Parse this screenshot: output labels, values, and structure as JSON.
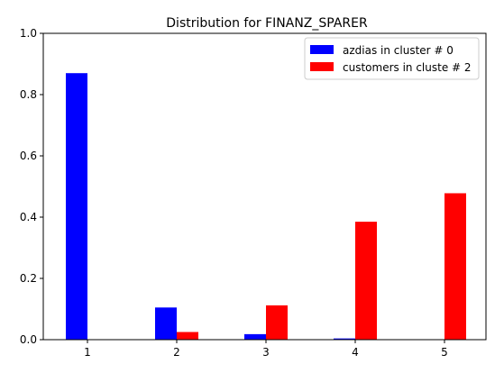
{
  "chart_data": {
    "type": "bar",
    "title": "Distribution for FINANZ_SPARER",
    "xlabel": "",
    "ylabel": "",
    "categories": [
      "1",
      "2",
      "3",
      "4",
      "5"
    ],
    "ylim": [
      0,
      1.0
    ],
    "yticks": [
      "0.0",
      "0.2",
      "0.4",
      "0.6",
      "0.8",
      "1.0"
    ],
    "grid": false,
    "legend_position": "top-right",
    "series": [
      {
        "name": "azdias in cluster # 0",
        "color": "#0000ff",
        "values": [
          0.87,
          0.105,
          0.018,
          0.004,
          0.0
        ]
      },
      {
        "name": "customers in cluste # 2",
        "color": "#ff0000",
        "values": [
          0.0,
          0.025,
          0.112,
          0.385,
          0.478
        ]
      }
    ]
  }
}
